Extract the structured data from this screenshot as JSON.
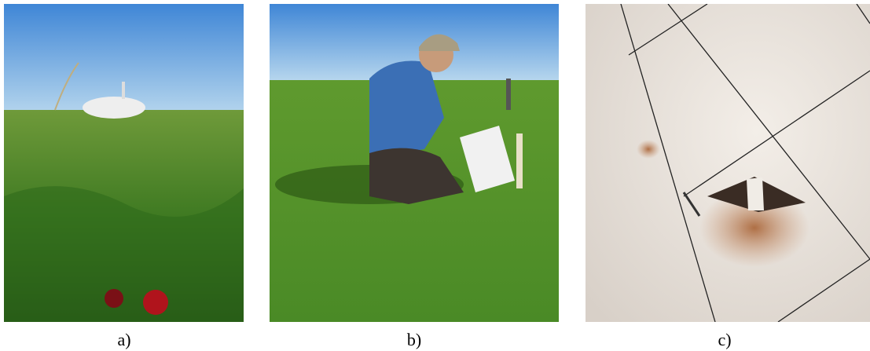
{
  "figure": {
    "panels": [
      {
        "caption": "a)"
      },
      {
        "caption": "b)"
      },
      {
        "caption": "c)"
      }
    ]
  }
}
